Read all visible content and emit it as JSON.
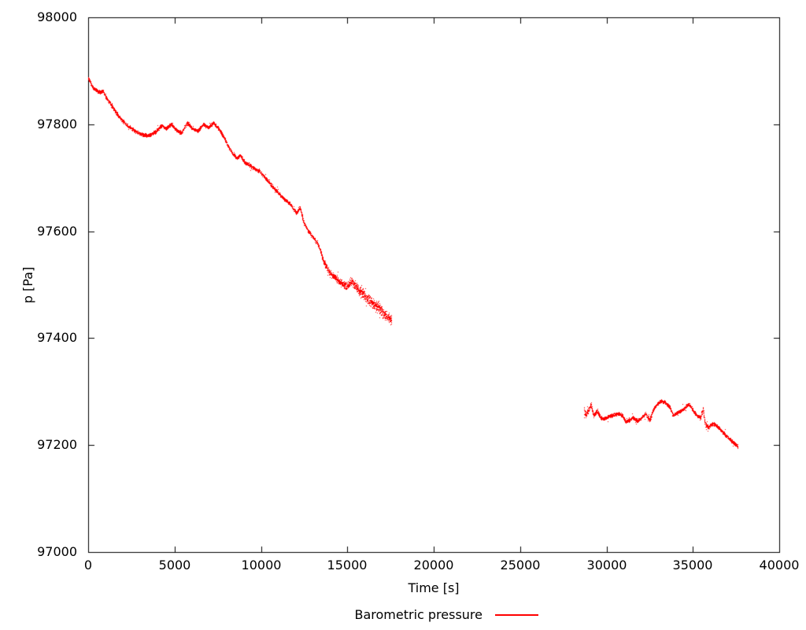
{
  "chart_data": {
    "type": "scatter",
    "title": "",
    "xlabel": "Time [s]",
    "ylabel": "p [Pa]",
    "xlim": [
      0,
      40000
    ],
    "ylim": [
      97000,
      98000
    ],
    "x_ticks": [
      "0",
      "5000",
      "10000",
      "15000",
      "20000",
      "25000",
      "30000",
      "35000",
      "40000"
    ],
    "y_ticks": [
      "97000",
      "97200",
      "97400",
      "97600",
      "97800",
      "98000"
    ],
    "grid": false,
    "border": true,
    "tick_style": "inward-mirrored",
    "legend": {
      "label": "Barometric pressure",
      "position": "below-plot-centered"
    },
    "colors": {
      "series": "#ff0000",
      "axis": "#000000",
      "background": "#ffffff"
    },
    "series": [
      {
        "name": "Barometric pressure",
        "color": "#ff0000",
        "style": "dots",
        "segments": [
          {
            "points": [
              [
                0,
                97888,
                3
              ],
              [
                200,
                97872
              ],
              [
                400,
                97865
              ],
              [
                650,
                97860
              ],
              [
                850,
                97863
              ],
              [
                1000,
                97852
              ],
              [
                1250,
                97840
              ],
              [
                1600,
                97822
              ],
              [
                1950,
                97808
              ],
              [
                2300,
                97797
              ],
              [
                2650,
                97789
              ],
              [
                3000,
                97782
              ],
              [
                3450,
                97779
              ],
              [
                3900,
                97786
              ],
              [
                4250,
                97798
              ],
              [
                4500,
                97792
              ],
              [
                4800,
                97801
              ],
              [
                5100,
                97789
              ],
              [
                5400,
                97784
              ],
              [
                5700,
                97803
              ],
              [
                6000,
                97793
              ],
              [
                6350,
                97788
              ],
              [
                6650,
                97800
              ],
              [
                6950,
                97795
              ],
              [
                7250,
                97803
              ],
              [
                7550,
                97792
              ],
              [
                7900,
                97773
              ],
              [
                8100,
                97759
              ],
              [
                8350,
                97746
              ],
              [
                8600,
                97737
              ],
              [
                8800,
                97742
              ],
              [
                9050,
                97729
              ],
              [
                9400,
                97722
              ],
              [
                9700,
                97716
              ],
              [
                9950,
                97711
              ],
              [
                10400,
                97694
              ],
              [
                10850,
                97677
              ],
              [
                11300,
                97662
              ],
              [
                11700,
                97650
              ],
              [
                12050,
                97634
              ],
              [
                12250,
                97645
              ],
              [
                12450,
                97618
              ],
              [
                12700,
                97603
              ],
              [
                13000,
                97589
              ],
              [
                13250,
                97579
              ],
              [
                13450,
                97563,
                3
              ],
              [
                13600,
                97546,
                4
              ],
              [
                13800,
                97532,
                4
              ],
              [
                14050,
                97520,
                4
              ],
              [
                14350,
                97512,
                4
              ],
              [
                14650,
                97503,
                5
              ],
              [
                14950,
                97497,
                5
              ],
              [
                15200,
                97506,
                6
              ],
              [
                15500,
                97497,
                6
              ],
              [
                15800,
                97487,
                7
              ],
              [
                16050,
                97477,
                7
              ],
              [
                16300,
                97470,
                7
              ],
              [
                16600,
                97463,
                7
              ],
              [
                16900,
                97454,
                7
              ],
              [
                17150,
                97445,
                7
              ],
              [
                17400,
                97437,
                6
              ],
              [
                17550,
                97434,
                6
              ]
            ]
          },
          {
            "points": [
              [
                28700,
                97262,
                8
              ],
              [
                28800,
                97256,
                4
              ],
              [
                28950,
                97266,
                3
              ],
              [
                29100,
                97276,
                3
              ],
              [
                29250,
                97255
              ],
              [
                29450,
                97265
              ],
              [
                29650,
                97251
              ],
              [
                29850,
                97250
              ],
              [
                30200,
                97255
              ],
              [
                30650,
                97259
              ],
              [
                30900,
                97256
              ],
              [
                31100,
                97244
              ],
              [
                31350,
                97247
              ],
              [
                31500,
                97252
              ],
              [
                31800,
                97245
              ],
              [
                32050,
                97252
              ],
              [
                32250,
                97259
              ],
              [
                32500,
                97247
              ],
              [
                32700,
                97266
              ],
              [
                32950,
                97278
              ],
              [
                33150,
                97283
              ],
              [
                33400,
                97280
              ],
              [
                33650,
                97272
              ],
              [
                33850,
                97256
              ],
              [
                34100,
                97262
              ],
              [
                34300,
                97264
              ],
              [
                34550,
                97271
              ],
              [
                34750,
                97277
              ],
              [
                35000,
                97266
              ],
              [
                35200,
                97256
              ],
              [
                35450,
                97252
              ],
              [
                35580,
                97268,
                5
              ],
              [
                35700,
                97240,
                4
              ],
              [
                35900,
                97234
              ],
              [
                36150,
                97241
              ],
              [
                36350,
                97237
              ],
              [
                36600,
                97229
              ],
              [
                36800,
                97222
              ],
              [
                37050,
                97214
              ],
              [
                37250,
                97207
              ],
              [
                37450,
                97203
              ],
              [
                37600,
                97196
              ]
            ]
          }
        ]
      }
    ]
  }
}
